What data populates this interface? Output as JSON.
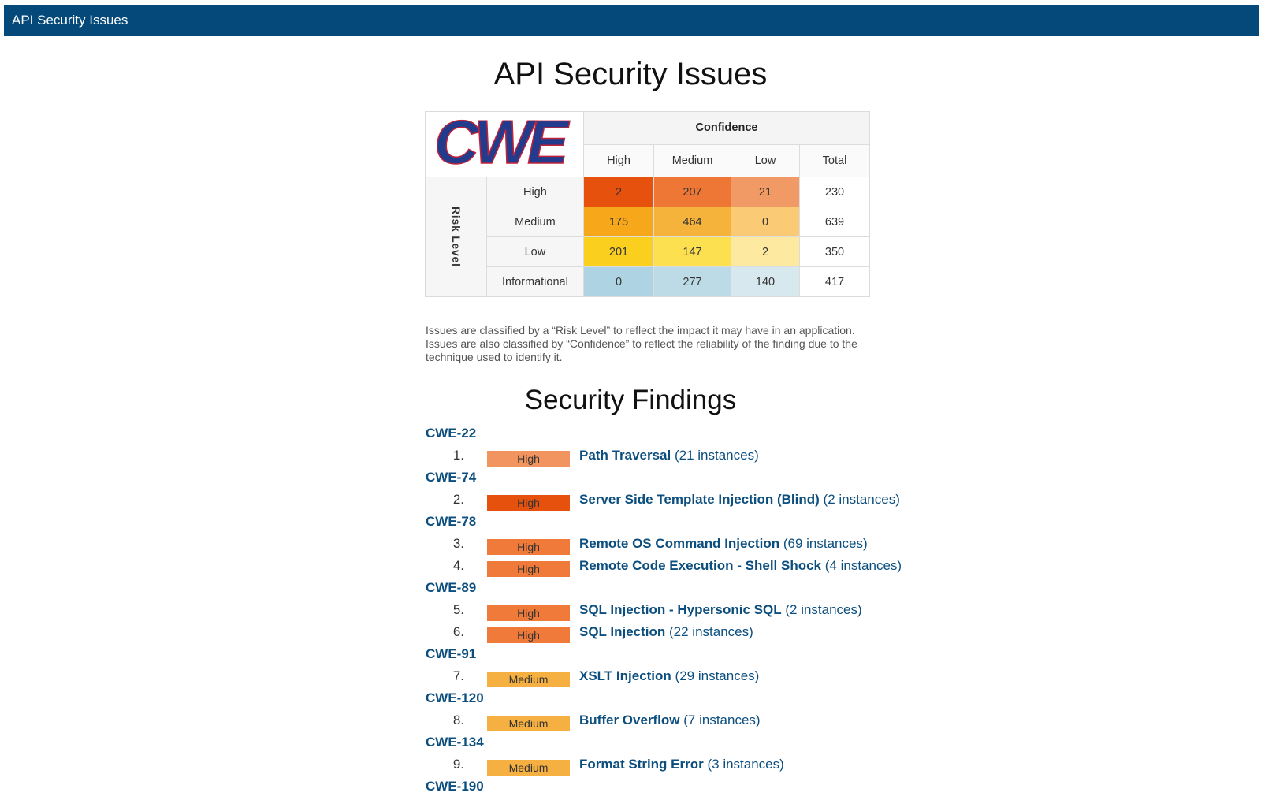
{
  "header": {
    "title": "API Security Issues"
  },
  "page_title": "API Security Issues",
  "matrix": {
    "logo_text": "CWE",
    "confidence_label": "Confidence",
    "risk_label": "Risk Level",
    "columns": [
      "High",
      "Medium",
      "Low",
      "Total"
    ],
    "rows": [
      {
        "label": "High",
        "cells": [
          "2",
          "207",
          "21"
        ],
        "total": "230",
        "colors": [
          "#e6520e",
          "#ef7736",
          "#f29a65"
        ]
      },
      {
        "label": "Medium",
        "cells": [
          "175",
          "464",
          "0"
        ],
        "total": "639",
        "colors": [
          "#f6a81a",
          "#f6b33c",
          "#fbca74"
        ]
      },
      {
        "label": "Low",
        "cells": [
          "201",
          "147",
          "2"
        ],
        "total": "350",
        "colors": [
          "#fbcf1e",
          "#fde050",
          "#fde9a0"
        ]
      },
      {
        "label": "Informational",
        "cells": [
          "0",
          "277",
          "140"
        ],
        "total": "417",
        "colors": [
          "#aed3e2",
          "#bcdbe7",
          "#d7e8ee"
        ]
      }
    ]
  },
  "note": "Issues are classified by a “Risk Level” to reflect the impact it may have in an application. Issues are also classified by “Confidence” to reflect the reliability of the finding due to the technique used to identify it.",
  "section_title": "Security Findings",
  "findings": [
    {
      "cwe": "CWE-22",
      "items": [
        {
          "num": "1.",
          "severity": "High",
          "color": "#f2945f",
          "name": "Path Traversal",
          "instances": "(21 instances)"
        }
      ]
    },
    {
      "cwe": "CWE-74",
      "items": [
        {
          "num": "2.",
          "severity": "High",
          "color": "#e6520e",
          "name": "Server Side Template Injection (Blind)",
          "instances": "(2 instances)"
        }
      ]
    },
    {
      "cwe": "CWE-78",
      "items": [
        {
          "num": "3.",
          "severity": "High",
          "color": "#ef7a3a",
          "name": "Remote OS Command Injection",
          "instances": "(69 instances)"
        },
        {
          "num": "4.",
          "severity": "High",
          "color": "#ef7a3a",
          "name": "Remote Code Execution - Shell Shock",
          "instances": "(4 instances)"
        }
      ]
    },
    {
      "cwe": "CWE-89",
      "items": [
        {
          "num": "5.",
          "severity": "High",
          "color": "#ef7a3a",
          "name": "SQL Injection - Hypersonic SQL",
          "instances": "(2 instances)"
        },
        {
          "num": "6.",
          "severity": "High",
          "color": "#ef7a3a",
          "name": "SQL Injection",
          "instances": "(22 instances)"
        }
      ]
    },
    {
      "cwe": "CWE-91",
      "items": [
        {
          "num": "7.",
          "severity": "Medium",
          "color": "#f5b041",
          "name": "XSLT Injection",
          "instances": "(29 instances)"
        }
      ]
    },
    {
      "cwe": "CWE-120",
      "items": [
        {
          "num": "8.",
          "severity": "Medium",
          "color": "#f5b041",
          "name": "Buffer Overflow",
          "instances": "(7 instances)"
        }
      ]
    },
    {
      "cwe": "CWE-134",
      "items": [
        {
          "num": "9.",
          "severity": "Medium",
          "color": "#f5b041",
          "name": "Format String Error",
          "instances": "(3 instances)"
        }
      ]
    },
    {
      "cwe": "CWE-190",
      "items": []
    }
  ]
}
